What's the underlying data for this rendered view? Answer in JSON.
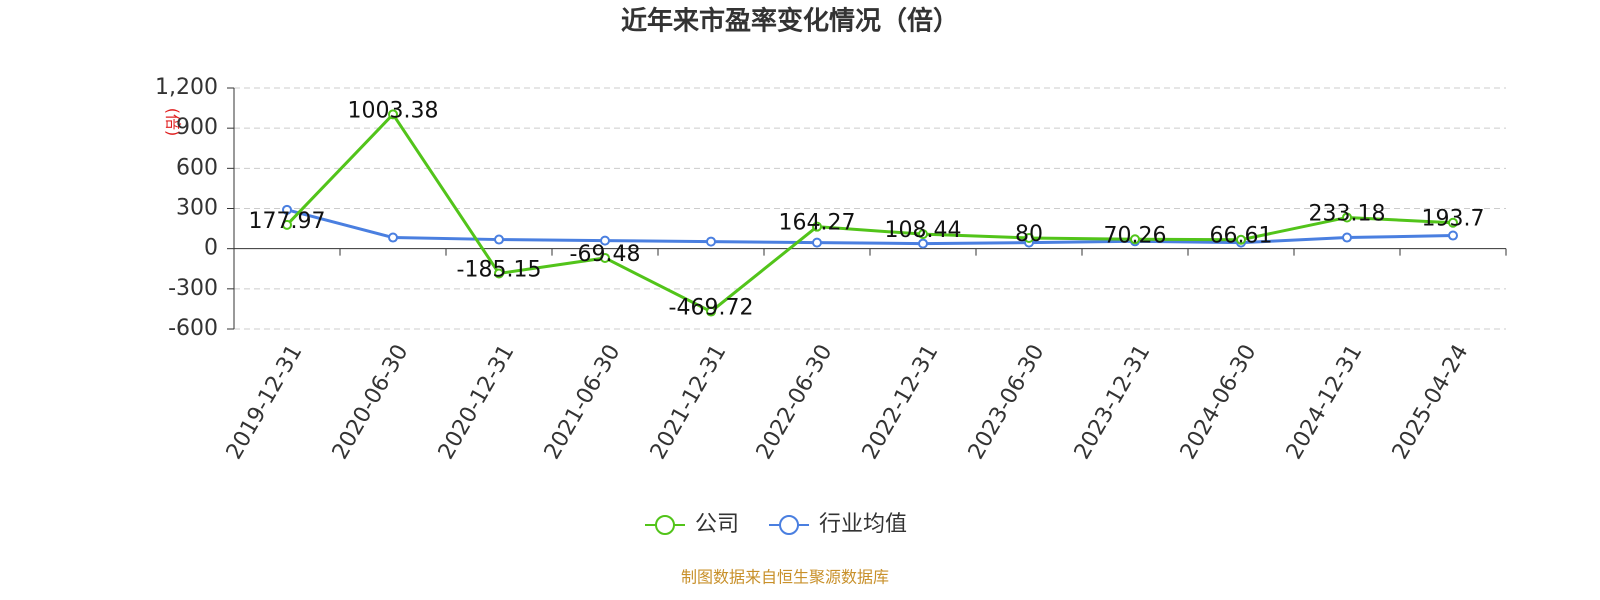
{
  "chart_data": {
    "type": "line",
    "title": "近年来市盈率变化情况（倍）",
    "y_label": "(倍)",
    "source": "制图数据来自恒生聚源数据库",
    "categories": [
      "2019-12-31",
      "2020-06-30",
      "2020-12-31",
      "2021-06-30",
      "2021-12-31",
      "2022-06-30",
      "2022-12-31",
      "2023-06-30",
      "2023-12-31",
      "2024-06-30",
      "2024-12-31",
      "2025-04-24"
    ],
    "series": [
      {
        "name": "公司",
        "color": "#52c41a",
        "values": [
          177.97,
          1003.38,
          -185.15,
          -69.48,
          -469.72,
          164.27,
          108.44,
          80,
          70.26,
          66.61,
          233.18,
          193.7
        ]
      },
      {
        "name": "行业均值",
        "color": "#4a7fe0",
        "values": [
          290,
          83,
          68,
          60,
          53,
          45,
          38,
          45,
          55,
          45,
          83,
          98
        ]
      }
    ],
    "ylim": [
      -600,
      1200
    ],
    "yticks": [
      -600,
      -300,
      0,
      300,
      600,
      900,
      {
        "value": 1200,
        "label": "1,200"
      }
    ],
    "grid": true
  }
}
